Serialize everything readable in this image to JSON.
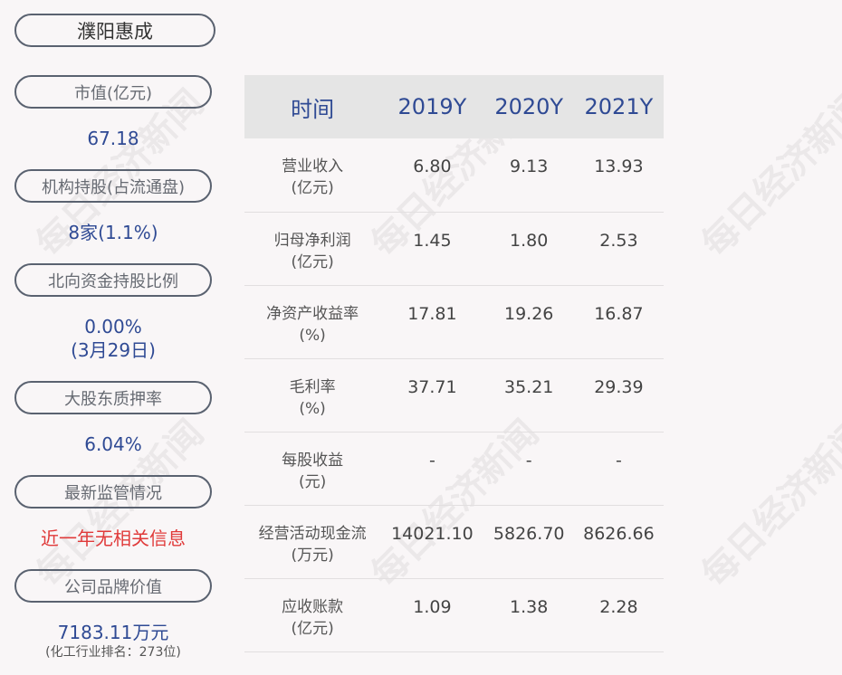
{
  "company": "濮阳惠成",
  "left": [
    {
      "label": "市值(亿元)",
      "value": "67.18"
    },
    {
      "label": "机构持股(占流通盘)",
      "value": "8家(1.1%)"
    },
    {
      "label": "北向资金持股比例",
      "value": "0.00%",
      "value2": "(3月29日)"
    },
    {
      "label": "大股东质押率",
      "value": "6.04%"
    },
    {
      "label": "最新监管情况",
      "value": "近一年无相关信息"
    },
    {
      "label": "公司品牌价值",
      "value": "7183.11万元",
      "note": "(化工行业排名：273位)"
    }
  ],
  "table": {
    "headers": [
      "时间",
      "2019Y",
      "2020Y",
      "2021Y"
    ],
    "rows": [
      {
        "name": "营业收入",
        "unit": "(亿元)",
        "values": [
          "6.80",
          "9.13",
          "13.93"
        ]
      },
      {
        "name": "归母净利润",
        "unit": "(亿元)",
        "values": [
          "1.45",
          "1.80",
          "2.53"
        ]
      },
      {
        "name": "净资产收益率",
        "unit": "(%)",
        "values": [
          "17.81",
          "19.26",
          "16.87"
        ]
      },
      {
        "name": "毛利率",
        "unit": "(%)",
        "values": [
          "37.71",
          "35.21",
          "29.39"
        ]
      },
      {
        "name": "每股收益",
        "unit": "(元)",
        "values": [
          "-",
          "-",
          "-"
        ]
      },
      {
        "name": "经营活动现金流",
        "unit": "(万元)",
        "values": [
          "14021.10",
          "5826.70",
          "8626.66"
        ]
      },
      {
        "name": "应收账款",
        "unit": "(亿元)",
        "values": [
          "1.09",
          "1.38",
          "2.28"
        ]
      }
    ]
  },
  "watermark": "每日经济新闻",
  "colors": {
    "accent": "#2f4a94",
    "alert": "#e03a3a"
  }
}
